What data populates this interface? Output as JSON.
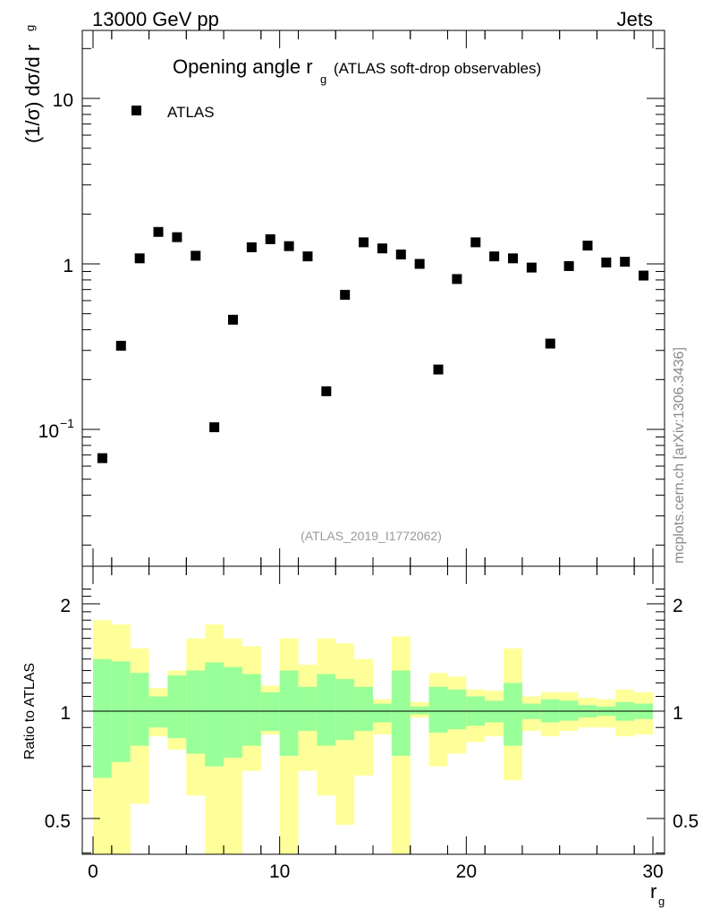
{
  "header": {
    "left": "13000 GeV pp",
    "right": "Jets"
  },
  "watermark": "mcplots.cern.ch [arXiv:1306.3436]",
  "chart_data": {
    "type": "scatter",
    "title_main": "Opening angle r",
    "title_sub": "g",
    "title_extra": "(ATLAS soft-drop observables)",
    "analysis_id": "(ATLAS_2019_I1772062)",
    "ylabel_main": "(1/σ) dσ/d r",
    "ylabel_sub": "g",
    "xlabel_main": "r",
    "xlabel_sub": "g",
    "ratio_ylabel": "Ratio to ATLAS",
    "legend": [
      {
        "name": "ATLAS",
        "marker": "square",
        "color": "#000000"
      }
    ],
    "xlim": [
      -1,
      31
    ],
    "ylim": [
      0.017,
      25
    ],
    "yscale": "log",
    "xticks": [
      0,
      10,
      20,
      30
    ],
    "yticks": [
      {
        "value": 10,
        "label": "10"
      },
      {
        "value": 1,
        "label": "1"
      },
      {
        "value": 0.1,
        "label": "10",
        "exponent": "−1"
      }
    ],
    "series": [
      {
        "name": "ATLAS",
        "x": [
          0.5,
          1.5,
          2.5,
          3.5,
          4.5,
          5.5,
          6.5,
          7.5,
          8.5,
          9.5,
          10.5,
          11.5,
          12.5,
          13.5,
          14.5,
          15.5,
          16.5,
          17.5,
          18.5,
          19.5,
          20.5,
          21.5,
          22.5,
          23.5,
          24.5,
          25.5,
          26.5,
          27.5,
          28.5,
          29.5
        ],
        "values": [
          0.067,
          0.32,
          1.08,
          1.56,
          1.45,
          1.12,
          0.103,
          0.46,
          1.26,
          1.41,
          1.28,
          1.11,
          0.17,
          0.65,
          1.35,
          1.24,
          1.14,
          1.0,
          0.23,
          0.81,
          1.35,
          1.11,
          1.08,
          0.95,
          0.33,
          0.97,
          1.29,
          1.02,
          1.03,
          0.85
        ]
      }
    ],
    "ratio": {
      "ylim": [
        0.35,
        2.3
      ],
      "yticks": [
        0.5,
        1,
        2
      ],
      "reference": 1,
      "bin_edges": [
        0,
        1,
        2,
        3,
        4,
        5,
        6,
        7,
        8,
        9,
        10,
        11,
        12,
        13,
        14,
        15,
        16,
        17,
        18,
        19,
        20,
        21,
        22,
        23,
        24,
        25,
        26,
        27,
        28,
        29,
        30
      ],
      "green_low": [
        0.65,
        0.72,
        0.8,
        0.9,
        0.84,
        0.76,
        0.7,
        0.74,
        0.8,
        0.88,
        0.75,
        0.88,
        0.8,
        0.83,
        0.88,
        0.93,
        0.75,
        0.98,
        0.87,
        0.89,
        0.91,
        0.93,
        0.8,
        0.95,
        0.93,
        0.94,
        0.96,
        0.97,
        0.94,
        0.95
      ],
      "green_high": [
        1.4,
        1.38,
        1.28,
        1.1,
        1.26,
        1.3,
        1.37,
        1.33,
        1.27,
        1.13,
        1.3,
        1.17,
        1.27,
        1.23,
        1.17,
        1.05,
        1.3,
        1.03,
        1.17,
        1.15,
        1.1,
        1.07,
        1.2,
        1.05,
        1.08,
        1.07,
        1.04,
        1.03,
        1.06,
        1.05
      ],
      "yellow_low": [
        0.3,
        0.3,
        0.55,
        0.85,
        0.78,
        0.58,
        0.3,
        0.3,
        0.68,
        0.86,
        0.32,
        0.68,
        0.58,
        0.48,
        0.66,
        0.86,
        0.32,
        0.96,
        0.7,
        0.76,
        0.82,
        0.85,
        0.64,
        0.88,
        0.85,
        0.88,
        0.9,
        0.9,
        0.85,
        0.86
      ],
      "yellow_high": [
        1.8,
        1.75,
        1.5,
        1.16,
        1.3,
        1.6,
        1.75,
        1.6,
        1.52,
        1.18,
        1.6,
        1.35,
        1.6,
        1.55,
        1.4,
        1.08,
        1.62,
        1.06,
        1.28,
        1.25,
        1.15,
        1.14,
        1.5,
        1.1,
        1.13,
        1.13,
        1.09,
        1.08,
        1.15,
        1.13
      ]
    }
  }
}
